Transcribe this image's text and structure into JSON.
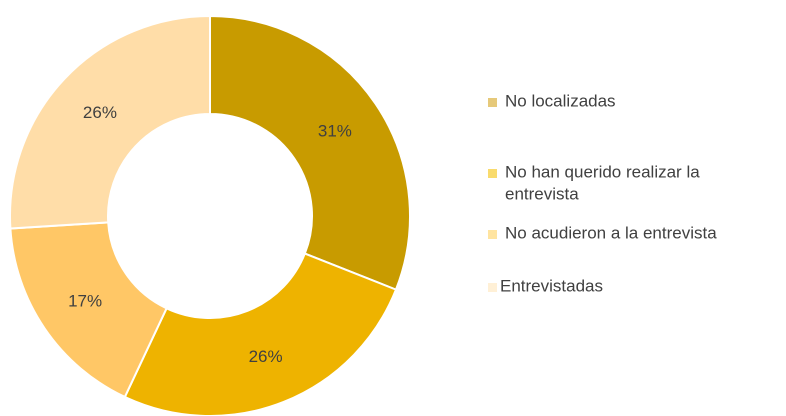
{
  "chart_data": {
    "type": "pie",
    "donut": true,
    "categories": [
      "No localizadas",
      "No han querido realizar la entrevista",
      "No acudieron a la entrevista",
      "Entrevistadas"
    ],
    "values": [
      31,
      26,
      17,
      26
    ],
    "data_labels": [
      "31%",
      "26%",
      "17%",
      "26%"
    ],
    "colors": [
      "#C89B00",
      "#EEB300",
      "#FFC766",
      "#FFDDA8"
    ],
    "legend_colors": [
      "#E6C97A",
      "#F9DB6D",
      "#FFE4A0",
      "#FFF0D6"
    ],
    "legend": {
      "placement": "right",
      "entries": [
        [
          "No localizadas"
        ],
        [
          "No han querido realizar la",
          "entrevista"
        ],
        [
          "No acudieron a la entrevista"
        ],
        [
          "Entrevistadas"
        ]
      ]
    }
  }
}
